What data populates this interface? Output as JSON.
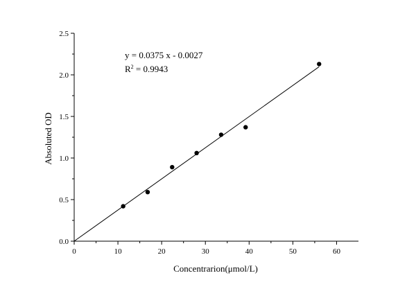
{
  "chart_data": {
    "type": "scatter",
    "xlabel": "Concentrarion(μmol/L)",
    "ylabel": "Absoluted OD",
    "xlim": [
      0,
      65
    ],
    "ylim": [
      0,
      2.5
    ],
    "x_ticks": [
      0,
      10,
      20,
      30,
      40,
      50,
      60
    ],
    "y_ticks": [
      0.0,
      0.5,
      1.0,
      1.5,
      2.0,
      2.5
    ],
    "x_tick_labels": [
      "0",
      "10",
      "20",
      "30",
      "40",
      "50",
      "60"
    ],
    "y_tick_labels": [
      "0.0",
      "0.5",
      "1.0",
      "1.5",
      "2.0",
      "2.5"
    ],
    "grid": false,
    "points": [
      {
        "x": 11.2,
        "y": 0.42
      },
      {
        "x": 16.8,
        "y": 0.59
      },
      {
        "x": 22.4,
        "y": 0.89
      },
      {
        "x": 28.0,
        "y": 1.06
      },
      {
        "x": 33.6,
        "y": 1.28
      },
      {
        "x": 39.2,
        "y": 1.37
      },
      {
        "x": 56.0,
        "y": 2.13
      }
    ],
    "fit": {
      "slope": 0.0375,
      "intercept": -0.0027,
      "x_range": [
        0,
        56
      ],
      "equation_label": "y = 0.0375 x - 0.0027",
      "r2_prefix": "R",
      "r2_exp": "2",
      "r2_value": " = 0.9943"
    }
  }
}
